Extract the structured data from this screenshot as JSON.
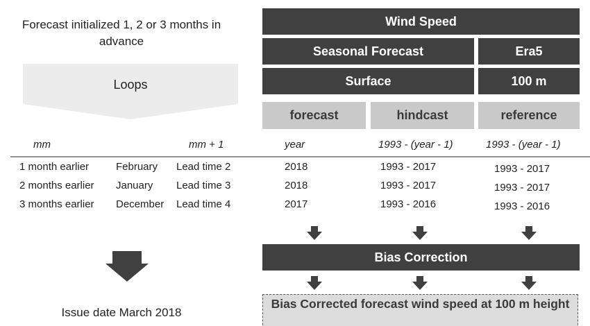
{
  "left": {
    "intro": "Forecast initialized 1, 2 or 3 months in advance",
    "loop_label": "Loops",
    "issue_date": "Issue date March 2018"
  },
  "headers": {
    "variable": "Wind Speed",
    "source_1": "Seasonal Forecast",
    "source_2": "Era5",
    "level_1": "Surface",
    "level_2": "100 m",
    "columns": [
      "forecast",
      "hindcast",
      "reference"
    ]
  },
  "table": {
    "header": [
      "mm",
      "mm + 1",
      "year",
      "1993 - (year - 1)",
      "1993 - (year - 1)"
    ],
    "rows": [
      [
        "1 month earlier",
        "February",
        "Lead time 2",
        "2018",
        "1993 - 2017",
        "1993 - 2017"
      ],
      [
        "2 months earlier",
        "January",
        "Lead time 3",
        "2018",
        "1993 - 2017",
        "1993 - 2017"
      ],
      [
        "3 months earlier",
        "December",
        "Lead time 4",
        "2017",
        "1993 - 2016",
        "1993 - 2016"
      ]
    ]
  },
  "bias_correction": "Bias Correction",
  "output": "Bias Corrected forecast wind speed at 100 m height"
}
